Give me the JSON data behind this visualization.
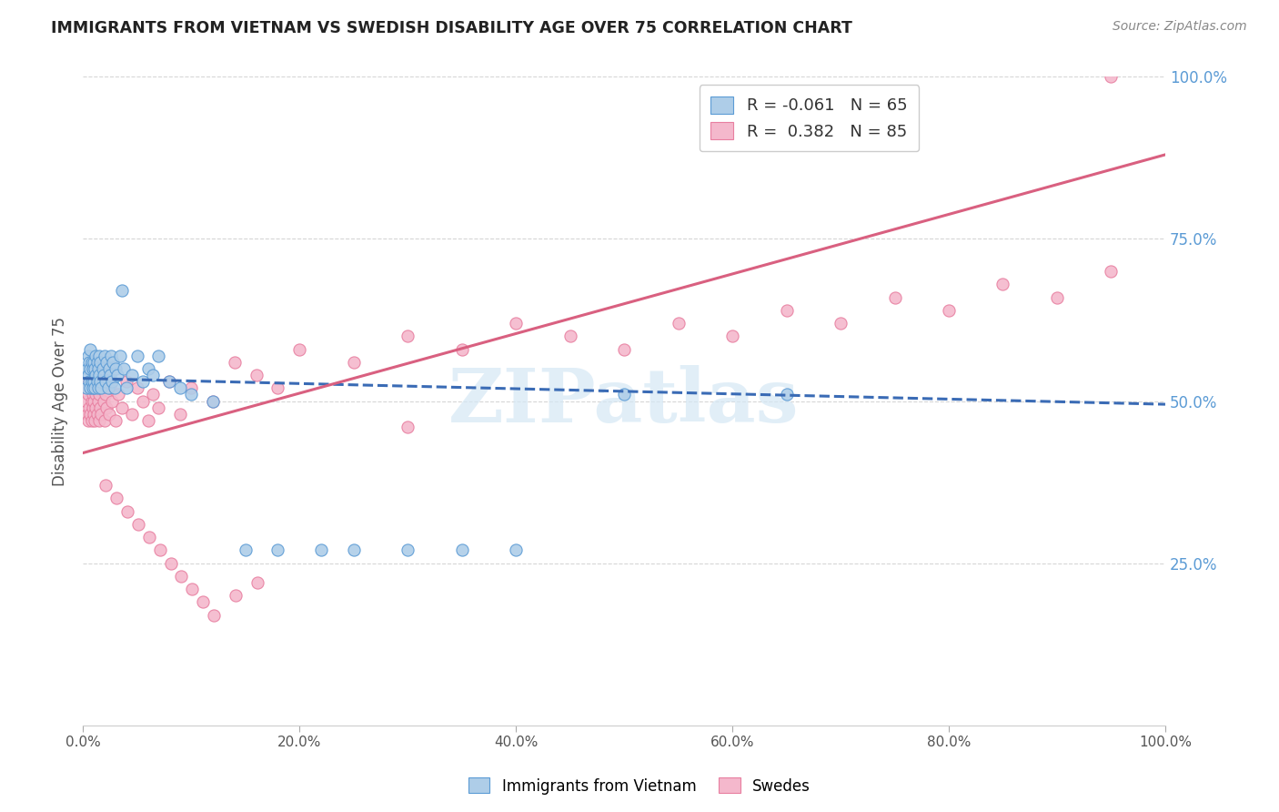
{
  "title": "IMMIGRANTS FROM VIETNAM VS SWEDISH DISABILITY AGE OVER 75 CORRELATION CHART",
  "source": "Source: ZipAtlas.com",
  "ylabel": "Disability Age Over 75",
  "xlim": [
    0.0,
    1.0
  ],
  "ylim": [
    0.0,
    1.0
  ],
  "xtick_labels": [
    "0.0%",
    "20.0%",
    "40.0%",
    "60.0%",
    "80.0%",
    "100.0%"
  ],
  "xtick_vals": [
    0.0,
    0.2,
    0.4,
    0.6,
    0.8,
    1.0
  ],
  "ytick_vals": [
    0.25,
    0.5,
    0.75,
    1.0
  ],
  "right_ytick_labels": [
    "25.0%",
    "50.0%",
    "75.0%",
    "100.0%"
  ],
  "blue_R": -0.061,
  "blue_N": 65,
  "pink_R": 0.382,
  "pink_N": 85,
  "blue_color": "#AECDE8",
  "pink_color": "#F4B8CC",
  "blue_edge_color": "#5B9BD5",
  "pink_edge_color": "#E87FA0",
  "blue_line_color": "#3A6BB5",
  "pink_line_color": "#D96080",
  "watermark_color": "#D5E8F5",
  "watermark": "ZIPatlas",
  "legend_label_blue": "Immigrants from Vietnam",
  "legend_label_pink": "Swedes",
  "blue_line_x": [
    0.0,
    1.0
  ],
  "blue_line_y": [
    0.535,
    0.495
  ],
  "pink_line_x": [
    0.0,
    1.0
  ],
  "pink_line_y": [
    0.42,
    0.88
  ],
  "blue_scatter_x": [
    0.003,
    0.004,
    0.005,
    0.005,
    0.006,
    0.006,
    0.007,
    0.007,
    0.007,
    0.008,
    0.008,
    0.009,
    0.009,
    0.01,
    0.01,
    0.011,
    0.011,
    0.012,
    0.012,
    0.013,
    0.013,
    0.014,
    0.014,
    0.015,
    0.015,
    0.016,
    0.016,
    0.017,
    0.018,
    0.019,
    0.02,
    0.021,
    0.022,
    0.023,
    0.024,
    0.025,
    0.026,
    0.027,
    0.028,
    0.029,
    0.03,
    0.032,
    0.034,
    0.036,
    0.038,
    0.04,
    0.045,
    0.05,
    0.055,
    0.06,
    0.065,
    0.07,
    0.08,
    0.09,
    0.1,
    0.12,
    0.15,
    0.18,
    0.22,
    0.25,
    0.3,
    0.35,
    0.4,
    0.5,
    0.65
  ],
  "blue_scatter_y": [
    0.52,
    0.55,
    0.54,
    0.57,
    0.53,
    0.56,
    0.52,
    0.55,
    0.58,
    0.53,
    0.56,
    0.52,
    0.55,
    0.53,
    0.56,
    0.52,
    0.55,
    0.54,
    0.57,
    0.53,
    0.56,
    0.52,
    0.55,
    0.54,
    0.57,
    0.53,
    0.56,
    0.52,
    0.55,
    0.54,
    0.57,
    0.53,
    0.56,
    0.52,
    0.55,
    0.54,
    0.57,
    0.53,
    0.56,
    0.52,
    0.55,
    0.54,
    0.57,
    0.67,
    0.55,
    0.52,
    0.54,
    0.57,
    0.53,
    0.55,
    0.54,
    0.57,
    0.53,
    0.52,
    0.51,
    0.5,
    0.27,
    0.27,
    0.27,
    0.27,
    0.27,
    0.27,
    0.27,
    0.51,
    0.51
  ],
  "pink_scatter_x": [
    0.003,
    0.004,
    0.004,
    0.005,
    0.005,
    0.006,
    0.006,
    0.007,
    0.007,
    0.008,
    0.008,
    0.009,
    0.009,
    0.01,
    0.01,
    0.011,
    0.011,
    0.012,
    0.012,
    0.013,
    0.013,
    0.014,
    0.014,
    0.015,
    0.015,
    0.016,
    0.016,
    0.017,
    0.018,
    0.019,
    0.02,
    0.021,
    0.022,
    0.023,
    0.024,
    0.025,
    0.027,
    0.03,
    0.033,
    0.036,
    0.04,
    0.045,
    0.05,
    0.055,
    0.06,
    0.065,
    0.07,
    0.08,
    0.09,
    0.1,
    0.12,
    0.14,
    0.16,
    0.18,
    0.2,
    0.25,
    0.3,
    0.35,
    0.4,
    0.45,
    0.5,
    0.55,
    0.6,
    0.65,
    0.7,
    0.75,
    0.8,
    0.85,
    0.9,
    0.95,
    0.021,
    0.031,
    0.041,
    0.051,
    0.061,
    0.071,
    0.081,
    0.091,
    0.101,
    0.111,
    0.121,
    0.141,
    0.161,
    0.3,
    0.95
  ],
  "pink_scatter_y": [
    0.5,
    0.48,
    0.52,
    0.47,
    0.51,
    0.49,
    0.53,
    0.48,
    0.52,
    0.5,
    0.47,
    0.51,
    0.49,
    0.5,
    0.48,
    0.52,
    0.47,
    0.51,
    0.49,
    0.53,
    0.48,
    0.52,
    0.5,
    0.47,
    0.51,
    0.49,
    0.53,
    0.48,
    0.52,
    0.5,
    0.47,
    0.51,
    0.49,
    0.53,
    0.48,
    0.52,
    0.5,
    0.47,
    0.51,
    0.49,
    0.53,
    0.48,
    0.52,
    0.5,
    0.47,
    0.51,
    0.49,
    0.53,
    0.48,
    0.52,
    0.5,
    0.56,
    0.54,
    0.52,
    0.58,
    0.56,
    0.6,
    0.58,
    0.62,
    0.6,
    0.58,
    0.62,
    0.6,
    0.64,
    0.62,
    0.66,
    0.64,
    0.68,
    0.66,
    0.7,
    0.37,
    0.35,
    0.33,
    0.31,
    0.29,
    0.27,
    0.25,
    0.23,
    0.21,
    0.19,
    0.17,
    0.2,
    0.22,
    0.46,
    1.0
  ]
}
